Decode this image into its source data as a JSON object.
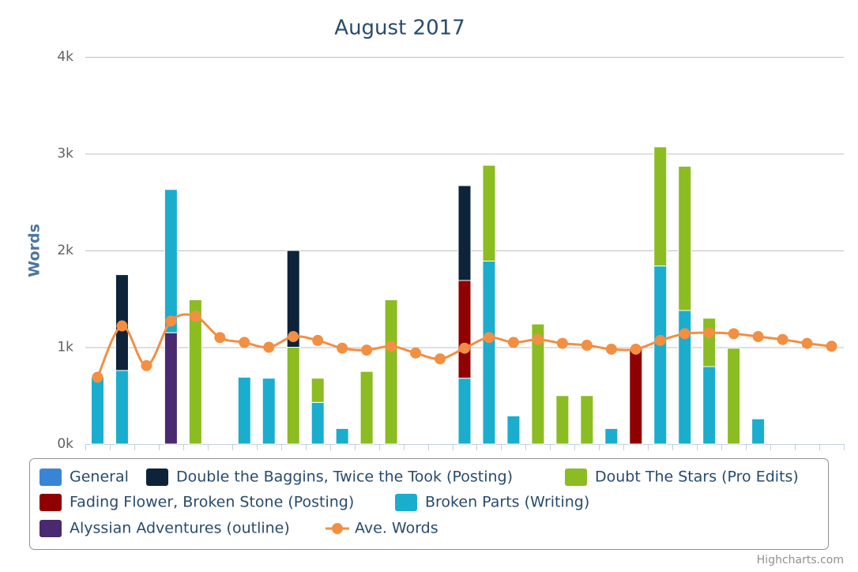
{
  "chart_data": {
    "type": "column",
    "title": "August 2017",
    "y_label": "Words",
    "credits": "Highcharts.com",
    "categories": [
      null,
      null,
      null,
      null,
      null,
      null,
      null,
      null,
      null,
      null,
      null,
      null,
      null,
      null,
      null,
      null,
      null,
      null,
      null,
      null,
      null,
      null,
      null,
      null,
      null,
      null,
      null,
      null,
      null,
      null,
      null
    ],
    "ylim": [
      0,
      4000
    ],
    "yticks": [
      {
        "value": 0,
        "label": "0k"
      },
      {
        "value": 1000,
        "label": "1k"
      },
      {
        "value": 2000,
        "label": "2k"
      },
      {
        "value": 3000,
        "label": "3k"
      },
      {
        "value": 4000,
        "label": "4k"
      }
    ],
    "grid": true,
    "stacked": true,
    "series": [
      {
        "name": "General",
        "color": "#3a84d8",
        "values": [
          null,
          null,
          null,
          null,
          null,
          null,
          null,
          null,
          null,
          null,
          null,
          null,
          null,
          null,
          null,
          null,
          null,
          null,
          null,
          null,
          null,
          null,
          null,
          null,
          null,
          null,
          null,
          null,
          null,
          null,
          null
        ]
      },
      {
        "name": "Double the Baggins, Twice the Took (Posting)",
        "color": "#0d233a",
        "values": [
          null,
          990,
          null,
          null,
          null,
          null,
          null,
          null,
          1000,
          null,
          null,
          null,
          null,
          null,
          null,
          980,
          null,
          null,
          null,
          null,
          null,
          null,
          null,
          null,
          null,
          null,
          null,
          null,
          null,
          null,
          null
        ]
      },
      {
        "name": "Doubt The Stars (Pro Edits)",
        "color": "#8bbc21",
        "values": [
          null,
          null,
          null,
          null,
          1490,
          null,
          null,
          null,
          1000,
          250,
          null,
          750,
          1490,
          null,
          null,
          null,
          990,
          null,
          1240,
          500,
          500,
          null,
          null,
          1230,
          1490,
          500,
          990,
          null,
          null,
          null,
          null
        ]
      },
      {
        "name": "Fading Flower, Broken Stone (Posting)",
        "color": "#910000",
        "values": [
          null,
          null,
          null,
          null,
          null,
          null,
          null,
          null,
          null,
          null,
          null,
          null,
          null,
          null,
          null,
          1010,
          null,
          null,
          null,
          null,
          null,
          null,
          990,
          null,
          null,
          null,
          null,
          null,
          null,
          null,
          null
        ]
      },
      {
        "name": "Broken Parts (Writing)",
        "color": "#1aadce",
        "values": [
          690,
          760,
          null,
          1480,
          null,
          null,
          690,
          680,
          null,
          430,
          160,
          null,
          null,
          null,
          null,
          680,
          1890,
          290,
          null,
          null,
          null,
          160,
          null,
          1840,
          1380,
          800,
          null,
          260,
          null,
          null,
          null
        ]
      },
      {
        "name": "Alyssian Adventures (outline)",
        "color": "#492970",
        "values": [
          null,
          null,
          null,
          1150,
          null,
          null,
          null,
          null,
          null,
          null,
          null,
          null,
          null,
          null,
          null,
          null,
          null,
          null,
          null,
          null,
          null,
          null,
          null,
          null,
          null,
          null,
          null,
          null,
          null,
          null,
          null
        ]
      },
      {
        "name": "Ave. Words",
        "type": "spline",
        "color": "#f28f43",
        "values": [
          690,
          1220,
          810,
          1270,
          1320,
          1100,
          1050,
          1000,
          1110,
          1070,
          990,
          970,
          1010,
          940,
          880,
          990,
          1100,
          1050,
          1080,
          1040,
          1020,
          980,
          980,
          1070,
          1140,
          1150,
          1140,
          1110,
          1080,
          1040,
          1010
        ]
      }
    ]
  }
}
